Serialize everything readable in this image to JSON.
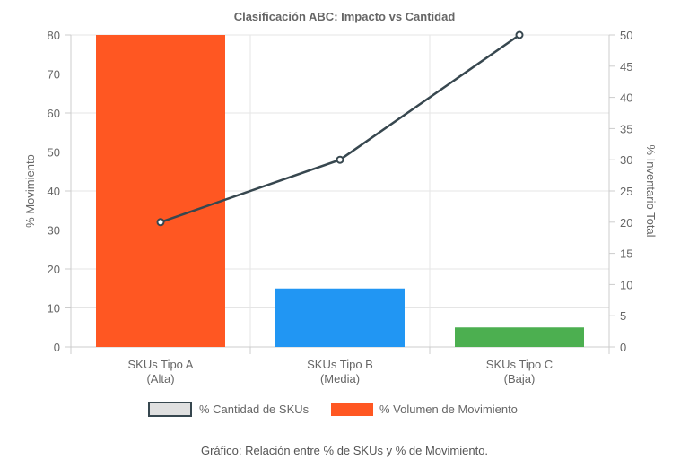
{
  "chart_data": {
    "type": "bar",
    "title": "Clasificación ABC: Impacto vs Cantidad",
    "categories": [
      [
        "SKUs Tipo A",
        "(Alta)"
      ],
      [
        "SKUs Tipo B",
        "(Media)"
      ],
      [
        "SKUs Tipo C",
        "(Baja)"
      ]
    ],
    "series": [
      {
        "name": "% Volumen de Movimiento",
        "type": "bar",
        "axis": "left",
        "values": [
          80,
          15,
          5
        ],
        "colors": [
          "#ff5722",
          "#2196f3",
          "#4caf50"
        ]
      },
      {
        "name": "% Cantidad de SKUs",
        "type": "line",
        "axis": "right",
        "values": [
          20,
          30,
          50
        ],
        "color": "#37474f"
      }
    ],
    "y_left": {
      "label": "% Movimiento",
      "min": 0,
      "max": 80,
      "ticks": [
        0,
        10,
        20,
        30,
        40,
        50,
        60,
        70,
        80
      ]
    },
    "y_right": {
      "label": "% Inventario Total",
      "min": 0,
      "max": 50,
      "ticks": [
        0,
        5,
        10,
        15,
        20,
        25,
        30,
        35,
        40,
        45,
        50
      ]
    },
    "legend_position": "bottom",
    "grid": true
  },
  "caption": "Gráfico: Relación entre % de SKUs y % de Movimiento."
}
